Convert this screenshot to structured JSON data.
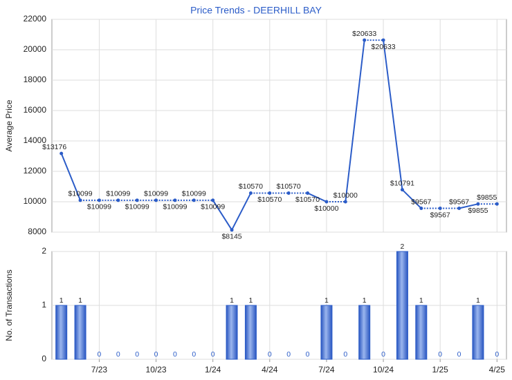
{
  "chart_data": [
    {
      "type": "line",
      "title": "Price Trends - DEERHILL BAY",
      "ylabel": "Average Price",
      "color": "#2b5cc8",
      "values": [
        13176,
        10099,
        10099,
        10099,
        10099,
        10099,
        10099,
        10099,
        10099,
        8145,
        10570,
        10570,
        10570,
        10570,
        10000,
        10000,
        20633,
        20633,
        10791,
        9567,
        9567,
        9567,
        9855,
        9855
      ],
      "value_labels": [
        "$13176",
        "$10099",
        "$10099",
        "$10099",
        "$10099",
        "$10099",
        "$10099",
        "$10099",
        "$10099",
        "$8145",
        "$10570",
        "$10570",
        "$10570",
        "$10570",
        "$10000",
        "$10000",
        "$20633",
        "$20633",
        "$10791",
        "$9567",
        "$9567",
        "$9567",
        "$9855",
        "$9855"
      ],
      "ylim": [
        8000,
        22000
      ],
      "yticks": [
        8000,
        10000,
        12000,
        14000,
        16000,
        18000,
        20000,
        22000
      ],
      "grid": true
    },
    {
      "type": "bar",
      "ylabel": "No. of Transactions",
      "color": "#2b5cc8",
      "categories": [
        null,
        null,
        "7/23",
        null,
        null,
        "10/23",
        null,
        null,
        "1/24",
        null,
        null,
        "4/24",
        null,
        null,
        "7/24",
        null,
        null,
        "10/24",
        null,
        null,
        "1/25",
        null,
        null,
        "4/25"
      ],
      "values": [
        1,
        1,
        0,
        0,
        0,
        0,
        0,
        0,
        0,
        1,
        1,
        0,
        0,
        0,
        1,
        0,
        1,
        0,
        2,
        1,
        0,
        0,
        1,
        0
      ],
      "ylim": [
        0,
        2
      ],
      "yticks": [
        0,
        1,
        2
      ],
      "grid": true
    }
  ]
}
